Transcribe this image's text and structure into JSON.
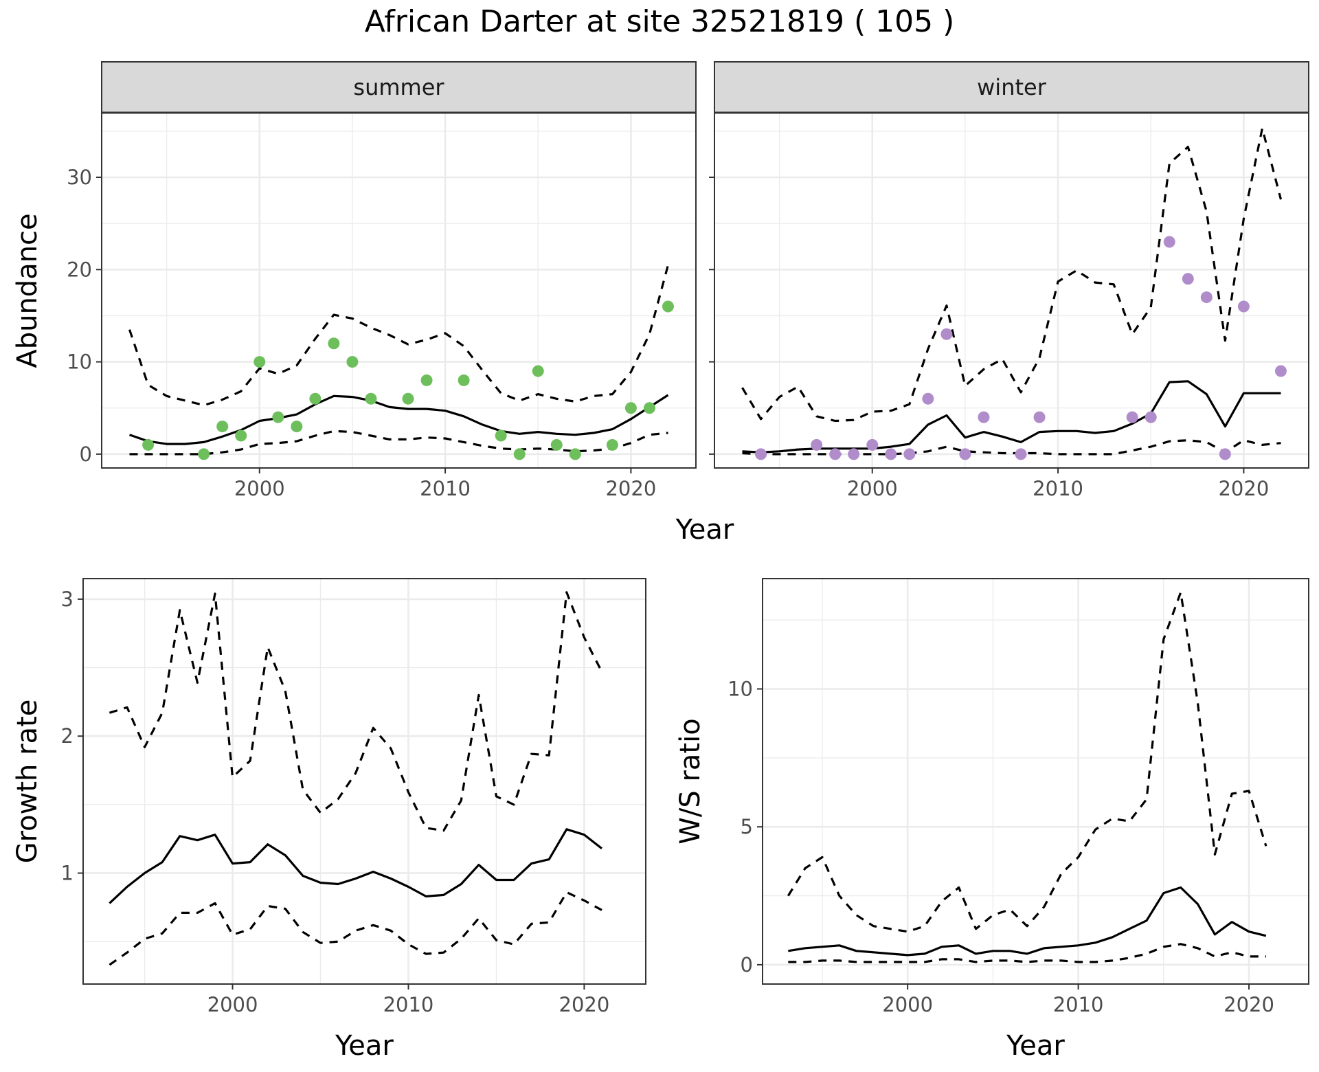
{
  "title": "African Darter at site 32521819 ( 105 )",
  "colors": {
    "summer_points": "#6dbf5b",
    "winter_points": "#b08ccb",
    "line": "#000000",
    "strip_fill": "#d9d9d9",
    "grid": "#ebebeb"
  },
  "chart_data": [
    {
      "type": "line",
      "panel": "summer",
      "strip_label": "summer",
      "xlabel": "Year",
      "ylabel": "Abundance",
      "xlim": [
        1991.5,
        2023.5
      ],
      "ylim": [
        -1.5,
        37
      ],
      "xticks": [
        2000,
        2010,
        2020
      ],
      "yticks": [
        0,
        10,
        20,
        30
      ],
      "x": [
        1993,
        1994,
        1995,
        1996,
        1997,
        1998,
        1999,
        2000,
        2001,
        2002,
        2003,
        2004,
        2005,
        2006,
        2007,
        2008,
        2009,
        2010,
        2011,
        2012,
        2013,
        2014,
        2015,
        2016,
        2017,
        2018,
        2019,
        2020,
        2021,
        2022
      ],
      "series": [
        {
          "style": "dashed",
          "values": [
            13.5,
            7.5,
            6.3,
            5.8,
            5.3,
            5.9,
            6.8,
            9.3,
            8.7,
            9.6,
            12.5,
            15.1,
            14.7,
            13.7,
            12.9,
            11.9,
            12.4,
            13.1,
            11.7,
            9.1,
            6.6,
            5.8,
            6.5,
            6.0,
            5.7,
            6.3,
            6.5,
            8.9,
            13.0,
            20.5
          ]
        },
        {
          "style": "solid",
          "values": [
            2.1,
            1.4,
            1.1,
            1.1,
            1.3,
            1.9,
            2.6,
            3.6,
            3.9,
            4.3,
            5.4,
            6.3,
            6.2,
            5.8,
            5.1,
            4.9,
            4.9,
            4.7,
            4.1,
            3.2,
            2.5,
            2.2,
            2.4,
            2.2,
            2.1,
            2.3,
            2.7,
            3.8,
            5.1,
            6.4
          ]
        },
        {
          "style": "dashed",
          "values": [
            0,
            0,
            0,
            0,
            0,
            0.2,
            0.5,
            1.1,
            1.2,
            1.4,
            2.0,
            2.5,
            2.4,
            2.0,
            1.6,
            1.6,
            1.8,
            1.7,
            1.3,
            0.9,
            0.6,
            0.5,
            0.6,
            0.5,
            0.3,
            0.4,
            0.6,
            1.2,
            2.1,
            2.3
          ]
        }
      ],
      "points": {
        "x": [
          1994,
          1997,
          1998,
          1999,
          2000,
          2001,
          2002,
          2003,
          2004,
          2005,
          2006,
          2008,
          2009,
          2011,
          2013,
          2014,
          2015,
          2016,
          2017,
          2019,
          2020,
          2021,
          2022
        ],
        "y": [
          1,
          0,
          3,
          2,
          10,
          4,
          3,
          6,
          12,
          10,
          6,
          6,
          8,
          8,
          2,
          0,
          9,
          1,
          0,
          1,
          5,
          5,
          16
        ]
      }
    },
    {
      "type": "line",
      "panel": "winter",
      "strip_label": "winter",
      "xlabel": "Year",
      "ylabel": "Abundance",
      "xlim": [
        1991.5,
        2023.5
      ],
      "ylim": [
        -1.5,
        37
      ],
      "xticks": [
        2000,
        2010,
        2020
      ],
      "yticks": [
        0,
        10,
        20,
        30
      ],
      "x": [
        1993,
        1994,
        1995,
        1996,
        1997,
        1998,
        1999,
        2000,
        2001,
        2002,
        2003,
        2004,
        2005,
        2006,
        2007,
        2008,
        2009,
        2010,
        2011,
        2012,
        2013,
        2014,
        2015,
        2016,
        2017,
        2018,
        2019,
        2020,
        2021,
        2022
      ],
      "series": [
        {
          "style": "dashed",
          "values": [
            7.2,
            3.8,
            6.2,
            7.3,
            4.1,
            3.6,
            3.7,
            4.6,
            4.7,
            5.4,
            11.4,
            16.1,
            7.4,
            9.2,
            10.3,
            6.7,
            10.4,
            18.7,
            19.9,
            18.6,
            18.4,
            13.0,
            15.9,
            31.5,
            33.3,
            26.3,
            12.3,
            25.5,
            35.3,
            27.6
          ]
        },
        {
          "style": "solid",
          "values": [
            0.3,
            0.2,
            0.3,
            0.5,
            0.6,
            0.6,
            0.6,
            0.6,
            0.8,
            1.1,
            3.2,
            4.2,
            1.8,
            2.4,
            1.9,
            1.3,
            2.4,
            2.5,
            2.5,
            2.3,
            2.5,
            3.3,
            4.4,
            7.8,
            7.9,
            6.5,
            3.0,
            6.6,
            6.6,
            6.6
          ]
        },
        {
          "style": "dashed",
          "values": [
            0.1,
            0,
            0,
            0,
            0,
            0,
            0,
            0,
            0,
            0.1,
            0.3,
            0.8,
            0.3,
            0.2,
            0.1,
            0.1,
            0.1,
            0,
            0,
            0,
            0,
            0.4,
            0.8,
            1.4,
            1.5,
            1.3,
            0.2,
            1.5,
            1.0,
            1.2
          ]
        }
      ],
      "points": {
        "x": [
          1994,
          1997,
          1998,
          1999,
          2000,
          2001,
          2002,
          2003,
          2004,
          2005,
          2006,
          2008,
          2009,
          2014,
          2015,
          2016,
          2017,
          2018,
          2019,
          2020,
          2022
        ],
        "y": [
          0,
          1,
          0,
          0,
          1,
          0,
          0,
          6,
          13,
          0,
          4,
          0,
          4,
          4,
          4,
          23,
          19,
          17,
          0,
          16,
          9
        ]
      }
    },
    {
      "type": "line",
      "panel": "growth",
      "xlabel": "Year",
      "ylabel": "Growth rate",
      "xlim": [
        1991.5,
        2023.5
      ],
      "ylim": [
        0.19,
        3.15
      ],
      "xticks": [
        2000,
        2010,
        2020
      ],
      "yticks": [
        1,
        2,
        3
      ],
      "x": [
        1993,
        1994,
        1995,
        1996,
        1997,
        1998,
        1999,
        2000,
        2001,
        2002,
        2003,
        2004,
        2005,
        2006,
        2007,
        2008,
        2009,
        2010,
        2011,
        2012,
        2013,
        2014,
        2015,
        2016,
        2017,
        2018,
        2019,
        2020,
        2021
      ],
      "series": [
        {
          "style": "dashed",
          "values": [
            2.17,
            2.21,
            1.92,
            2.17,
            2.92,
            2.39,
            3.04,
            1.7,
            1.82,
            2.65,
            2.33,
            1.61,
            1.44,
            1.54,
            1.73,
            2.06,
            1.91,
            1.59,
            1.33,
            1.31,
            1.53,
            2.3,
            1.56,
            1.5,
            1.87,
            1.86,
            3.05,
            2.72,
            2.47
          ]
        },
        {
          "style": "solid",
          "values": [
            0.78,
            0.9,
            1.0,
            1.08,
            1.27,
            1.24,
            1.28,
            1.07,
            1.08,
            1.21,
            1.13,
            0.98,
            0.93,
            0.92,
            0.96,
            1.01,
            0.96,
            0.9,
            0.83,
            0.84,
            0.92,
            1.06,
            0.95,
            0.95,
            1.07,
            1.1,
            1.32,
            1.28,
            1.18
          ]
        },
        {
          "style": "dashed",
          "values": [
            0.33,
            0.42,
            0.52,
            0.56,
            0.71,
            0.71,
            0.78,
            0.55,
            0.59,
            0.76,
            0.74,
            0.57,
            0.49,
            0.5,
            0.58,
            0.62,
            0.58,
            0.48,
            0.41,
            0.42,
            0.52,
            0.67,
            0.51,
            0.48,
            0.63,
            0.64,
            0.86,
            0.8,
            0.73
          ]
        }
      ]
    },
    {
      "type": "line",
      "panel": "ws_ratio",
      "xlabel": "Year",
      "ylabel": "W/S ratio",
      "xlim": [
        1991.5,
        2023.5
      ],
      "ylim": [
        -0.7,
        14.0
      ],
      "xticks": [
        2000,
        2010,
        2020
      ],
      "yticks": [
        0,
        5,
        10
      ],
      "x": [
        1993,
        1994,
        1995,
        1996,
        1997,
        1998,
        1999,
        2000,
        2001,
        2002,
        2003,
        2004,
        2005,
        2006,
        2007,
        2008,
        2009,
        2010,
        2011,
        2012,
        2013,
        2014,
        2015,
        2016,
        2017,
        2018,
        2019,
        2020,
        2021
      ],
      "series": [
        {
          "style": "dashed",
          "values": [
            2.5,
            3.5,
            3.9,
            2.5,
            1.8,
            1.4,
            1.3,
            1.2,
            1.4,
            2.3,
            2.8,
            1.3,
            1.8,
            2.0,
            1.4,
            2.1,
            3.3,
            3.9,
            4.9,
            5.3,
            5.2,
            6.0,
            11.8,
            13.5,
            9.5,
            4.0,
            6.2,
            6.3,
            4.3
          ]
        },
        {
          "style": "solid",
          "values": [
            0.5,
            0.6,
            0.65,
            0.7,
            0.5,
            0.45,
            0.4,
            0.35,
            0.4,
            0.65,
            0.7,
            0.4,
            0.5,
            0.5,
            0.4,
            0.6,
            0.65,
            0.7,
            0.8,
            1.0,
            1.3,
            1.6,
            2.6,
            2.8,
            2.2,
            1.1,
            1.55,
            1.2,
            1.05
          ]
        },
        {
          "style": "dashed",
          "values": [
            0.1,
            0.1,
            0.15,
            0.15,
            0.1,
            0.1,
            0.1,
            0.1,
            0.1,
            0.2,
            0.2,
            0.1,
            0.15,
            0.15,
            0.1,
            0.15,
            0.15,
            0.1,
            0.1,
            0.15,
            0.25,
            0.4,
            0.65,
            0.75,
            0.6,
            0.3,
            0.45,
            0.3,
            0.3
          ]
        }
      ]
    }
  ]
}
